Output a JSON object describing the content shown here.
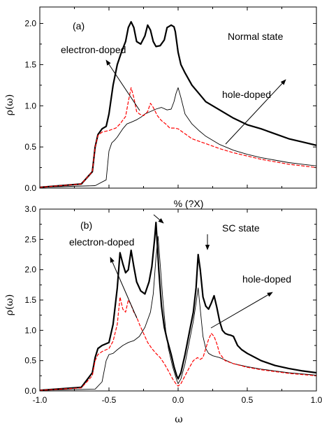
{
  "chart_data": [
    {
      "type": "line",
      "panel_label": "(a)",
      "state_label": "Normal state",
      "xlabel": "% (?X)",
      "ylabel": "ρ(ω)",
      "xlim": [
        -1.0,
        1.0
      ],
      "ylim": [
        0.0,
        2.2
      ],
      "yticks": [
        0.0,
        0.5,
        1.0,
        1.5,
        2.0
      ],
      "ytick_labels": [
        "0.0",
        "0.5",
        "1.0",
        "1.5",
        "2.0"
      ],
      "annotations": [
        {
          "text": "electron-doped"
        },
        {
          "text": "hole-doped"
        }
      ],
      "series": [
        {
          "style": "thick-black",
          "color": "#000000",
          "x": [
            -1.0,
            -0.7,
            -0.62,
            -0.6,
            -0.58,
            -0.55,
            -0.52,
            -0.5,
            -0.47,
            -0.44,
            -0.41,
            -0.38,
            -0.36,
            -0.34,
            -0.32,
            -0.3,
            -0.27,
            -0.24,
            -0.22,
            -0.2,
            -0.18,
            -0.16,
            -0.13,
            -0.1,
            -0.08,
            -0.05,
            -0.03,
            -0.02,
            0.0,
            0.02,
            0.05,
            0.1,
            0.15,
            0.2,
            0.3,
            0.4,
            0.5,
            0.6,
            0.7,
            0.8,
            0.9,
            1.0
          ],
          "y": [
            0.01,
            0.05,
            0.2,
            0.5,
            0.65,
            0.72,
            0.75,
            0.9,
            1.25,
            1.5,
            1.65,
            1.78,
            1.95,
            2.02,
            1.95,
            1.78,
            1.75,
            1.85,
            1.98,
            1.92,
            1.78,
            1.72,
            1.73,
            1.8,
            1.95,
            1.98,
            1.96,
            1.9,
            1.65,
            1.5,
            1.4,
            1.25,
            1.15,
            1.05,
            0.95,
            0.85,
            0.77,
            0.72,
            0.66,
            0.6,
            0.56,
            0.52
          ]
        },
        {
          "style": "thin-black",
          "color": "#000000",
          "x": [
            -1.0,
            -0.6,
            -0.52,
            -0.5,
            -0.48,
            -0.46,
            -0.44,
            -0.42,
            -0.4,
            -0.37,
            -0.34,
            -0.3,
            -0.27,
            -0.24,
            -0.2,
            -0.16,
            -0.12,
            -0.08,
            -0.05,
            -0.03,
            -0.015,
            0.0,
            0.02,
            0.05,
            0.1,
            0.15,
            0.2,
            0.3,
            0.4,
            0.5,
            0.6,
            0.7,
            0.8,
            0.9,
            1.0
          ],
          "y": [
            0.01,
            0.03,
            0.1,
            0.45,
            0.55,
            0.58,
            0.62,
            0.67,
            0.72,
            0.78,
            0.8,
            0.83,
            0.86,
            0.9,
            0.93,
            0.96,
            0.98,
            0.95,
            0.96,
            1.05,
            1.15,
            1.22,
            1.1,
            0.9,
            0.78,
            0.7,
            0.63,
            0.53,
            0.46,
            0.41,
            0.37,
            0.34,
            0.31,
            0.29,
            0.27
          ]
        },
        {
          "style": "dashed-red",
          "color": "#ff0000",
          "x": [
            -1.0,
            -0.7,
            -0.62,
            -0.6,
            -0.58,
            -0.55,
            -0.5,
            -0.45,
            -0.42,
            -0.38,
            -0.36,
            -0.34,
            -0.32,
            -0.3,
            -0.28,
            -0.25,
            -0.22,
            -0.2,
            -0.18,
            -0.15,
            -0.12,
            -0.09,
            -0.06,
            -0.03,
            0.0,
            0.05,
            0.1,
            0.2,
            0.3,
            0.4,
            0.5,
            0.6,
            0.7,
            0.8,
            0.9,
            1.0
          ],
          "y": [
            0.01,
            0.05,
            0.2,
            0.5,
            0.64,
            0.68,
            0.7,
            0.73,
            0.78,
            0.87,
            1.05,
            1.22,
            1.1,
            0.93,
            0.9,
            0.88,
            0.93,
            1.03,
            0.98,
            0.88,
            0.82,
            0.78,
            0.73,
            0.73,
            0.72,
            0.66,
            0.6,
            0.54,
            0.48,
            0.43,
            0.39,
            0.35,
            0.32,
            0.29,
            0.27,
            0.25
          ]
        }
      ]
    },
    {
      "type": "line",
      "panel_label": "(b)",
      "state_label": "SC state",
      "xlabel": "ω",
      "ylabel": "ρ(ω)",
      "xlim": [
        -1.0,
        1.0
      ],
      "ylim": [
        0.0,
        3.0
      ],
      "xticks": [
        -1.0,
        -0.5,
        0.0,
        0.5,
        1.0
      ],
      "xtick_labels": [
        "-1.0",
        "-0.5",
        "0.0",
        "0.5",
        "1.0"
      ],
      "yticks": [
        0.0,
        0.5,
        1.0,
        1.5,
        2.0,
        2.5,
        3.0
      ],
      "ytick_labels": [
        "0.0",
        "0.5",
        "1.0",
        "1.5",
        "2.0",
        "2.5",
        "3.0"
      ],
      "annotations": [
        {
          "text": "electron-doped"
        },
        {
          "text": "hole-doped"
        }
      ],
      "series": [
        {
          "style": "thick-black",
          "color": "#000000",
          "x": [
            -1.0,
            -0.7,
            -0.62,
            -0.6,
            -0.58,
            -0.55,
            -0.5,
            -0.47,
            -0.44,
            -0.42,
            -0.4,
            -0.38,
            -0.36,
            -0.34,
            -0.32,
            -0.3,
            -0.27,
            -0.24,
            -0.21,
            -0.19,
            -0.17,
            -0.16,
            -0.15,
            -0.14,
            -0.12,
            -0.1,
            -0.08,
            -0.05,
            -0.03,
            -0.01,
            0.0,
            0.02,
            0.05,
            0.08,
            0.11,
            0.13,
            0.145,
            0.16,
            0.18,
            0.2,
            0.22,
            0.24,
            0.26,
            0.28,
            0.3,
            0.32,
            0.34,
            0.36,
            0.38,
            0.4,
            0.43,
            0.46,
            0.5,
            0.6,
            0.7,
            0.8,
            0.9,
            1.0
          ],
          "y": [
            0.01,
            0.06,
            0.3,
            0.55,
            0.7,
            0.75,
            0.8,
            1.1,
            1.7,
            2.28,
            2.1,
            1.95,
            2.0,
            2.32,
            2.05,
            1.8,
            1.65,
            1.6,
            1.8,
            2.05,
            2.5,
            2.78,
            2.4,
            2.0,
            1.4,
            1.05,
            0.85,
            0.6,
            0.4,
            0.25,
            0.2,
            0.3,
            0.6,
            0.95,
            1.3,
            1.7,
            2.25,
            2.0,
            1.55,
            1.4,
            1.35,
            1.45,
            1.57,
            1.38,
            1.15,
            1.0,
            0.95,
            0.93,
            0.92,
            0.9,
            0.75,
            0.68,
            0.62,
            0.5,
            0.42,
            0.37,
            0.33,
            0.3
          ]
        },
        {
          "style": "thin-black",
          "color": "#000000",
          "x": [
            -1.0,
            -0.6,
            -0.55,
            -0.52,
            -0.5,
            -0.47,
            -0.44,
            -0.4,
            -0.36,
            -0.32,
            -0.28,
            -0.24,
            -0.2,
            -0.18,
            -0.16,
            -0.145,
            -0.13,
            -0.11,
            -0.09,
            -0.07,
            -0.04,
            -0.01,
            0.0,
            0.02,
            0.05,
            0.08,
            0.11,
            0.13,
            0.145,
            0.16,
            0.18,
            0.2,
            0.22,
            0.25,
            0.3,
            0.4,
            0.5,
            0.6,
            0.7,
            0.8,
            0.9,
            1.0
          ],
          "y": [
            0.01,
            0.03,
            0.15,
            0.5,
            0.6,
            0.62,
            0.68,
            0.75,
            0.8,
            0.83,
            0.9,
            1.05,
            1.3,
            1.6,
            2.2,
            2.55,
            2.1,
            1.5,
            1.0,
            0.7,
            0.4,
            0.18,
            0.12,
            0.2,
            0.45,
            0.8,
            1.15,
            1.45,
            1.7,
            1.35,
            0.9,
            0.7,
            0.62,
            0.58,
            0.55,
            0.45,
            0.4,
            0.36,
            0.33,
            0.3,
            0.28,
            0.26
          ]
        },
        {
          "style": "dashed-red",
          "color": "#ff0000",
          "x": [
            -1.0,
            -0.7,
            -0.62,
            -0.6,
            -0.58,
            -0.55,
            -0.5,
            -0.47,
            -0.44,
            -0.42,
            -0.4,
            -0.38,
            -0.36,
            -0.34,
            -0.32,
            -0.3,
            -0.28,
            -0.25,
            -0.22,
            -0.19,
            -0.16,
            -0.13,
            -0.1,
            -0.07,
            -0.04,
            -0.01,
            0.0,
            0.02,
            0.05,
            0.08,
            0.11,
            0.14,
            0.16,
            0.18,
            0.2,
            0.22,
            0.24,
            0.26,
            0.28,
            0.3,
            0.34,
            0.4,
            0.5,
            0.6,
            0.7,
            0.8,
            0.9,
            1.0
          ],
          "y": [
            0.01,
            0.05,
            0.25,
            0.5,
            0.6,
            0.65,
            0.7,
            0.82,
            1.1,
            1.55,
            1.35,
            1.3,
            1.5,
            1.42,
            1.3,
            1.22,
            1.1,
            0.95,
            0.8,
            0.7,
            0.62,
            0.55,
            0.45,
            0.33,
            0.2,
            0.1,
            0.08,
            0.12,
            0.25,
            0.38,
            0.5,
            0.55,
            0.52,
            0.55,
            0.7,
            0.85,
            0.95,
            0.9,
            0.78,
            0.62,
            0.5,
            0.45,
            0.39,
            0.35,
            0.32,
            0.29,
            0.27,
            0.25
          ]
        }
      ]
    }
  ]
}
